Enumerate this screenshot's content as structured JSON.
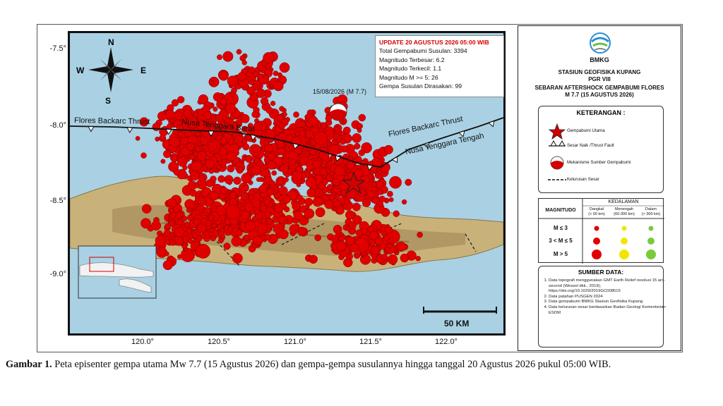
{
  "map": {
    "lat_labels": [
      "-7.5°",
      "-8.0°",
      "-8.5°",
      "-9.0°"
    ],
    "lon_labels": [
      "120.0°",
      "120.5°",
      "121.0°",
      "121.5°",
      "122.0°"
    ],
    "compass": {
      "n": "N",
      "s": "S",
      "e": "E",
      "w": "W"
    },
    "fault_labels": {
      "west": "Flores Backarc Thrust",
      "west_segment": "Nusa Tenggara Barat",
      "east": "Flores Backarc Thrust",
      "east_segment": "Nusa Tenggara Tengah"
    },
    "mainshock_label": "15/08/2026 (M 7.7)",
    "scale_label": "50 KM",
    "colors": {
      "sea": "#a9d1e3",
      "land": "#c9b27a",
      "quake": "#e00000",
      "fault": "#111111"
    }
  },
  "info": {
    "update": "UPDATE 20 AGUSTUS 2026 05:00 WIB",
    "lines": [
      "Total Gempabumi Susulan: 3394",
      "Magnitudo Terbesar: 6.2",
      "Magnitudo Terkecil: 1.1",
      "Magnitudo M >= 5: 26",
      "Gempa Susulan Dirasakan: 99"
    ]
  },
  "legend": {
    "logo_text": "BMKG",
    "station": "STASIUN GEOFISIKA KUPANG",
    "pgr": "PGR VIII",
    "title1": "SEBARAN AFTERSHOCK GEMPABUMI FLORES",
    "title2": "M 7.7 (15 AGUSTUS 2026)",
    "keterangan_title": "KETERANGAN :",
    "items": [
      "Gempabumi Utama",
      "Sesar Naik /Thrust Fault",
      "Mekanisme Sumber Gempabumi",
      "Kelurusan Sesar"
    ],
    "kedalaman": "KEDALAMAN",
    "magnitudo": "MAGNITUDO",
    "depth_cols": [
      {
        "name": "Dangkal",
        "range": "(< 60 km)"
      },
      {
        "name": "Menengah",
        "range": "(60-300 km)"
      },
      {
        "name": "Dalam",
        "range": "(> 300 km)"
      }
    ],
    "mag_rows": [
      "M ≤ 3",
      "3 < M ≤ 5",
      "M > 5"
    ],
    "depth_colors": [
      "#e00000",
      "#f2e600",
      "#7acb3a"
    ]
  },
  "sources": {
    "title": "SUMBER DATA:",
    "items": [
      "Data topografi menggunakan GMT Earth Relief resolusi 15 arc-second (Wessel dkk., 2019); https://doi.org/10.1029/2019GC008515",
      "Data patahan PUSGEN 2024",
      "Data gempabumi BMKG Stasiun Geofisika Kupang",
      "Data kelurusan sesar berdasarkan Badan Geologi Kementerian ESDM"
    ]
  },
  "caption": {
    "label": "Gambar 1.",
    "text": " Peta episenter gempa utama Mw 7.7 (15 Agustus 2026) dan gempa-gempa susulannya hingga tanggal 20 Agustus 2026 pukul 05:00 WIB."
  }
}
